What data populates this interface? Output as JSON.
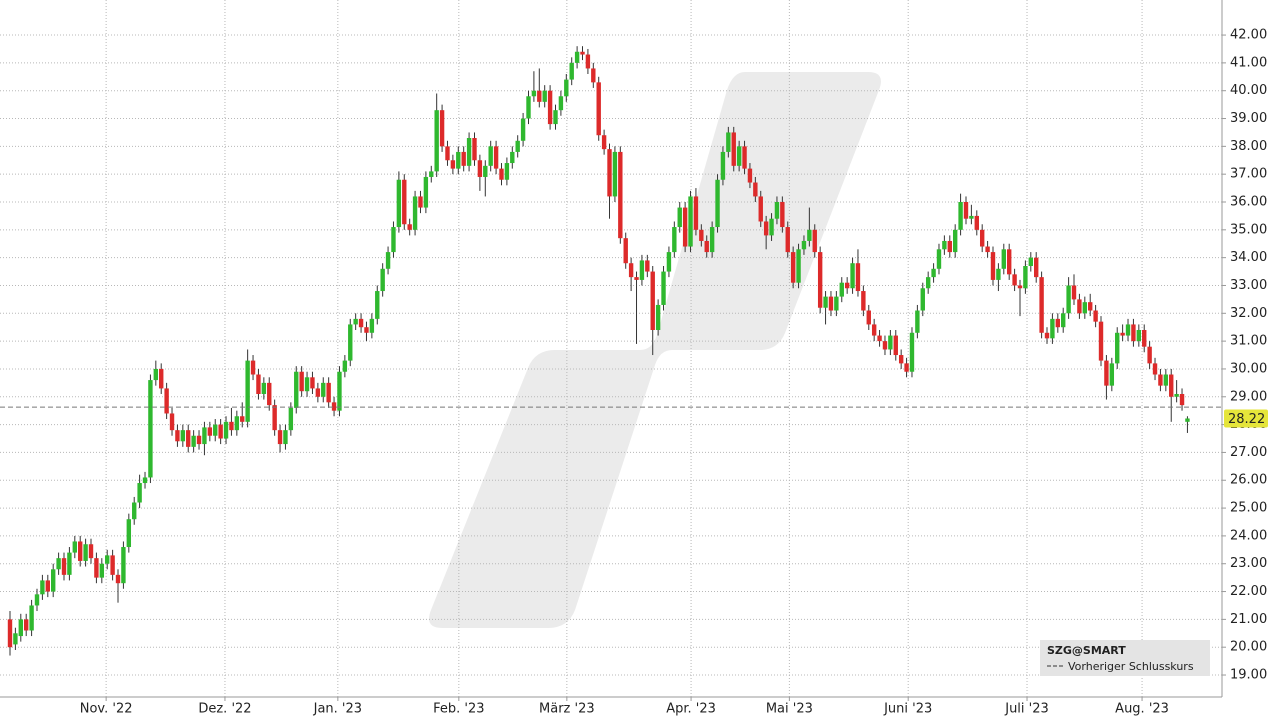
{
  "chart_data": {
    "type": "candlestick",
    "xlim": [
      -1.85,
      224.4
    ],
    "xticks": [
      {
        "value": 17.8,
        "label": "Nov. '22"
      },
      {
        "value": 39.8,
        "label": "Dez. '22"
      },
      {
        "value": 60.7,
        "label": "Jan. '23"
      },
      {
        "value": 83.1,
        "label": "Feb. '23"
      },
      {
        "value": 103.1,
        "label": "März '23"
      },
      {
        "value": 126.1,
        "label": "Apr. '23"
      },
      {
        "value": 144.3,
        "label": "Mai '23"
      },
      {
        "value": 166.3,
        "label": "Juni '23"
      },
      {
        "value": 188.3,
        "label": "Juli '23"
      },
      {
        "value": 209.6,
        "label": "Aug. '23"
      }
    ],
    "ylim": [
      18.21,
      43.26
    ],
    "yticks": [
      {
        "value": 19,
        "label": "19.00"
      },
      {
        "value": 20,
        "label": "20.00"
      },
      {
        "value": 21,
        "label": "21.00"
      },
      {
        "value": 22,
        "label": "22.00"
      },
      {
        "value": 23,
        "label": "23.00"
      },
      {
        "value": 24,
        "label": "24.00"
      },
      {
        "value": 25,
        "label": "25.00"
      },
      {
        "value": 26,
        "label": "26.00"
      },
      {
        "value": 27,
        "label": "27.00"
      },
      {
        "value": 28,
        "label": "28.00"
      },
      {
        "value": 29,
        "label": "29.00"
      },
      {
        "value": 30,
        "label": "30.00"
      },
      {
        "value": 31,
        "label": "31.00"
      },
      {
        "value": 32,
        "label": "32.00"
      },
      {
        "value": 33,
        "label": "33.00"
      },
      {
        "value": 34,
        "label": "34.00"
      },
      {
        "value": 35,
        "label": "35.00"
      },
      {
        "value": 36,
        "label": "36.00"
      },
      {
        "value": 37,
        "label": "37.00"
      },
      {
        "value": 38,
        "label": "38.00"
      },
      {
        "value": 39,
        "label": "39.00"
      },
      {
        "value": 40,
        "label": "40.00"
      },
      {
        "value": 41,
        "label": "41.00"
      },
      {
        "value": 42,
        "label": "42.00"
      }
    ],
    "grid": true,
    "up_color": "#2fb82f",
    "down_color": "#dd2a2a",
    "last_price": 28.22,
    "prev_close": 28.63,
    "legend": {
      "title": "SZG@SMART",
      "prev_close_label": "Vorheriger Schlusskurs"
    },
    "ohlc": [
      [
        21.0,
        21.3,
        19.7,
        20.0
      ],
      [
        20.1,
        20.7,
        19.9,
        20.5
      ],
      [
        20.4,
        21.2,
        20.2,
        21.0
      ],
      [
        21.0,
        21.2,
        20.4,
        20.6
      ],
      [
        20.6,
        21.7,
        20.4,
        21.5
      ],
      [
        21.5,
        22.1,
        21.3,
        21.9
      ],
      [
        21.9,
        22.6,
        21.7,
        22.4
      ],
      [
        22.4,
        22.6,
        21.8,
        22.0
      ],
      [
        22.0,
        23.0,
        21.8,
        22.8
      ],
      [
        22.8,
        23.4,
        22.6,
        23.2
      ],
      [
        23.2,
        23.4,
        22.4,
        22.6
      ],
      [
        22.6,
        23.6,
        22.4,
        23.4
      ],
      [
        23.4,
        24.0,
        23.2,
        23.8
      ],
      [
        23.8,
        24.0,
        22.9,
        23.1
      ],
      [
        23.1,
        23.9,
        22.9,
        23.7
      ],
      [
        23.7,
        23.9,
        23.0,
        23.2
      ],
      [
        23.2,
        23.4,
        22.3,
        22.5
      ],
      [
        22.5,
        23.2,
        22.3,
        23.0
      ],
      [
        23.0,
        23.5,
        22.8,
        23.3
      ],
      [
        23.3,
        23.5,
        22.4,
        22.6
      ],
      [
        22.6,
        22.8,
        21.6,
        22.3
      ],
      [
        22.3,
        23.8,
        22.1,
        23.6
      ],
      [
        23.6,
        24.8,
        23.4,
        24.6
      ],
      [
        24.6,
        25.4,
        24.4,
        25.2
      ],
      [
        25.2,
        26.2,
        25.0,
        25.9
      ],
      [
        25.9,
        26.3,
        25.7,
        26.1
      ],
      [
        26.1,
        29.8,
        25.9,
        29.6
      ],
      [
        29.6,
        30.3,
        29.4,
        30.0
      ],
      [
        30.0,
        30.2,
        29.1,
        29.3
      ],
      [
        29.3,
        29.5,
        28.2,
        28.4
      ],
      [
        28.4,
        28.6,
        27.6,
        27.8
      ],
      [
        27.8,
        28.0,
        27.2,
        27.4
      ],
      [
        27.4,
        28.0,
        27.2,
        27.8
      ],
      [
        27.8,
        28.0,
        27.0,
        27.2
      ],
      [
        27.2,
        27.8,
        27.0,
        27.6
      ],
      [
        27.6,
        27.8,
        27.1,
        27.3
      ],
      [
        27.3,
        28.1,
        26.9,
        27.9
      ],
      [
        27.9,
        28.1,
        27.4,
        27.6
      ],
      [
        27.6,
        28.2,
        27.4,
        28.0
      ],
      [
        28.0,
        28.2,
        27.3,
        27.5
      ],
      [
        27.5,
        28.3,
        27.3,
        28.1
      ],
      [
        28.1,
        28.6,
        27.6,
        27.8
      ],
      [
        27.8,
        28.5,
        27.6,
        28.3
      ],
      [
        28.3,
        28.8,
        27.9,
        28.1
      ],
      [
        28.1,
        30.7,
        27.9,
        30.3
      ],
      [
        30.3,
        30.5,
        29.6,
        29.8
      ],
      [
        29.8,
        30.0,
        28.9,
        29.1
      ],
      [
        29.1,
        29.7,
        28.9,
        29.5
      ],
      [
        29.5,
        29.7,
        28.5,
        28.7
      ],
      [
        28.7,
        28.9,
        27.6,
        27.8
      ],
      [
        27.8,
        28.0,
        27.0,
        27.3
      ],
      [
        27.3,
        28.0,
        27.1,
        27.8
      ],
      [
        27.8,
        28.8,
        27.6,
        28.6
      ],
      [
        28.6,
        30.1,
        28.4,
        29.9
      ],
      [
        29.9,
        30.1,
        29.0,
        29.2
      ],
      [
        29.2,
        29.9,
        29.0,
        29.7
      ],
      [
        29.7,
        29.9,
        29.1,
        29.3
      ],
      [
        29.3,
        29.5,
        28.8,
        29.0
      ],
      [
        29.0,
        29.7,
        28.8,
        29.5
      ],
      [
        29.5,
        29.7,
        28.6,
        28.8
      ],
      [
        28.8,
        29.0,
        28.3,
        28.5
      ],
      [
        28.5,
        30.1,
        28.3,
        29.9
      ],
      [
        29.9,
        30.5,
        29.7,
        30.3
      ],
      [
        30.3,
        31.8,
        30.1,
        31.6
      ],
      [
        31.6,
        32.0,
        31.4,
        31.8
      ],
      [
        31.8,
        32.0,
        31.3,
        31.5
      ],
      [
        31.5,
        31.7,
        31.0,
        31.3
      ],
      [
        31.3,
        32.0,
        31.1,
        31.8
      ],
      [
        31.8,
        33.0,
        31.6,
        32.8
      ],
      [
        32.8,
        33.8,
        32.6,
        33.6
      ],
      [
        33.6,
        34.4,
        33.4,
        34.2
      ],
      [
        34.2,
        35.3,
        34.0,
        35.1
      ],
      [
        35.1,
        37.1,
        34.9,
        36.8
      ],
      [
        36.8,
        37.0,
        35.0,
        35.2
      ],
      [
        35.2,
        35.4,
        34.8,
        35.0
      ],
      [
        35.0,
        36.4,
        34.8,
        36.2
      ],
      [
        36.2,
        36.4,
        35.6,
        35.8
      ],
      [
        35.8,
        37.1,
        35.6,
        36.9
      ],
      [
        36.9,
        37.3,
        36.7,
        37.1
      ],
      [
        37.1,
        39.9,
        36.9,
        39.3
      ],
      [
        39.3,
        39.5,
        37.8,
        38.0
      ],
      [
        38.0,
        38.2,
        37.3,
        37.5
      ],
      [
        37.5,
        37.7,
        37.0,
        37.2
      ],
      [
        37.2,
        38.0,
        37.0,
        37.8
      ],
      [
        37.8,
        38.0,
        37.1,
        37.3
      ],
      [
        37.3,
        38.5,
        37.1,
        38.3
      ],
      [
        38.3,
        38.5,
        37.3,
        37.5
      ],
      [
        37.5,
        37.7,
        36.4,
        36.9
      ],
      [
        36.9,
        37.5,
        36.2,
        37.3
      ],
      [
        37.3,
        38.2,
        37.1,
        38.0
      ],
      [
        38.0,
        38.2,
        37.0,
        37.2
      ],
      [
        37.2,
        37.4,
        36.6,
        36.8
      ],
      [
        36.8,
        37.6,
        36.6,
        37.4
      ],
      [
        37.4,
        38.0,
        37.2,
        37.8
      ],
      [
        37.8,
        38.4,
        37.6,
        38.2
      ],
      [
        38.2,
        39.2,
        38.0,
        39.0
      ],
      [
        39.0,
        40.0,
        38.8,
        39.8
      ],
      [
        39.8,
        40.7,
        39.6,
        40.0
      ],
      [
        40.0,
        40.8,
        39.4,
        39.6
      ],
      [
        39.6,
        40.2,
        39.4,
        40.0
      ],
      [
        40.0,
        40.2,
        38.6,
        38.8
      ],
      [
        38.8,
        39.5,
        38.6,
        39.3
      ],
      [
        39.3,
        40.0,
        39.1,
        39.8
      ],
      [
        39.8,
        40.6,
        39.6,
        40.4
      ],
      [
        40.4,
        41.2,
        40.2,
        41.0
      ],
      [
        41.0,
        41.6,
        40.8,
        41.4
      ],
      [
        41.4,
        41.6,
        41.1,
        41.3
      ],
      [
        41.3,
        41.5,
        40.6,
        40.8
      ],
      [
        40.8,
        41.0,
        40.1,
        40.3
      ],
      [
        40.3,
        40.5,
        38.2,
        38.4
      ],
      [
        38.4,
        38.6,
        37.7,
        37.9
      ],
      [
        37.9,
        38.1,
        35.4,
        36.2
      ],
      [
        36.2,
        38.0,
        36.0,
        37.8
      ],
      [
        37.8,
        38.0,
        34.5,
        34.7
      ],
      [
        34.7,
        34.9,
        33.6,
        33.8
      ],
      [
        33.8,
        34.0,
        32.8,
        33.3
      ],
      [
        33.3,
        33.5,
        30.9,
        33.2
      ],
      [
        33.2,
        34.1,
        33.0,
        33.9
      ],
      [
        33.9,
        34.1,
        33.3,
        33.5
      ],
      [
        33.5,
        33.7,
        30.5,
        31.4
      ],
      [
        31.4,
        32.5,
        31.2,
        32.3
      ],
      [
        32.3,
        33.7,
        32.1,
        33.5
      ],
      [
        33.5,
        34.4,
        33.3,
        34.2
      ],
      [
        34.2,
        35.3,
        34.0,
        35.1
      ],
      [
        35.1,
        36.0,
        34.9,
        35.8
      ],
      [
        35.8,
        36.0,
        34.2,
        34.4
      ],
      [
        34.4,
        36.4,
        34.2,
        36.2
      ],
      [
        36.2,
        36.5,
        34.8,
        35.0
      ],
      [
        35.0,
        35.2,
        34.4,
        34.6
      ],
      [
        34.6,
        34.8,
        34.0,
        34.2
      ],
      [
        34.2,
        35.3,
        34.0,
        35.1
      ],
      [
        35.1,
        37.0,
        34.9,
        36.8
      ],
      [
        36.8,
        38.0,
        36.6,
        37.8
      ],
      [
        37.8,
        38.7,
        37.6,
        38.5
      ],
      [
        38.5,
        38.7,
        37.1,
        37.3
      ],
      [
        37.3,
        38.2,
        37.1,
        38.0
      ],
      [
        38.0,
        38.2,
        37.0,
        37.2
      ],
      [
        37.2,
        37.4,
        36.5,
        36.7
      ],
      [
        36.7,
        36.9,
        36.0,
        36.2
      ],
      [
        36.2,
        36.4,
        35.1,
        35.3
      ],
      [
        35.3,
        35.5,
        34.3,
        34.8
      ],
      [
        34.8,
        35.6,
        34.6,
        35.4
      ],
      [
        35.4,
        36.2,
        35.2,
        36.0
      ],
      [
        36.0,
        36.2,
        34.9,
        35.1
      ],
      [
        35.1,
        35.3,
        34.0,
        34.2
      ],
      [
        34.2,
        34.4,
        32.9,
        33.1
      ],
      [
        33.1,
        34.5,
        32.9,
        34.3
      ],
      [
        34.3,
        34.8,
        34.1,
        34.6
      ],
      [
        34.6,
        35.8,
        34.4,
        35.0
      ],
      [
        35.0,
        35.2,
        34.0,
        34.2
      ],
      [
        34.2,
        34.4,
        32.0,
        32.2
      ],
      [
        32.2,
        32.8,
        31.6,
        32.6
      ],
      [
        32.6,
        32.8,
        31.9,
        32.1
      ],
      [
        32.1,
        32.8,
        31.9,
        32.6
      ],
      [
        32.6,
        33.3,
        32.4,
        33.1
      ],
      [
        33.1,
        33.3,
        32.7,
        32.9
      ],
      [
        32.9,
        34.0,
        32.7,
        33.8
      ],
      [
        33.8,
        34.3,
        32.6,
        32.8
      ],
      [
        32.8,
        33.0,
        31.9,
        32.1
      ],
      [
        32.1,
        32.3,
        31.4,
        31.6
      ],
      [
        31.6,
        31.8,
        31.0,
        31.2
      ],
      [
        31.2,
        31.4,
        30.8,
        31.0
      ],
      [
        31.0,
        31.2,
        30.5,
        30.7
      ],
      [
        30.7,
        31.4,
        30.5,
        31.2
      ],
      [
        31.2,
        31.4,
        30.3,
        30.5
      ],
      [
        30.5,
        30.7,
        30.0,
        30.2
      ],
      [
        30.2,
        30.4,
        29.7,
        29.9
      ],
      [
        29.9,
        31.5,
        29.7,
        31.3
      ],
      [
        31.3,
        32.3,
        31.1,
        32.1
      ],
      [
        32.1,
        33.1,
        31.9,
        32.9
      ],
      [
        32.9,
        33.5,
        32.7,
        33.3
      ],
      [
        33.3,
        33.8,
        33.1,
        33.6
      ],
      [
        33.6,
        34.5,
        33.4,
        34.3
      ],
      [
        34.3,
        34.8,
        34.1,
        34.6
      ],
      [
        34.6,
        34.8,
        34.0,
        34.2
      ],
      [
        34.2,
        35.2,
        34.0,
        35.0
      ],
      [
        35.0,
        36.3,
        34.8,
        36.0
      ],
      [
        36.0,
        36.2,
        35.2,
        35.4
      ],
      [
        35.4,
        35.9,
        35.2,
        35.5
      ],
      [
        35.5,
        35.7,
        34.8,
        35.0
      ],
      [
        35.0,
        35.2,
        34.2,
        34.4
      ],
      [
        34.4,
        34.6,
        34.0,
        34.2
      ],
      [
        34.2,
        34.4,
        33.0,
        33.2
      ],
      [
        33.2,
        33.8,
        32.8,
        33.6
      ],
      [
        33.6,
        34.5,
        33.4,
        34.3
      ],
      [
        34.3,
        34.5,
        33.2,
        33.4
      ],
      [
        33.4,
        33.6,
        32.8,
        33.0
      ],
      [
        33.0,
        33.2,
        31.9,
        32.9
      ],
      [
        32.9,
        33.9,
        32.7,
        33.7
      ],
      [
        33.7,
        34.2,
        33.5,
        34.0
      ],
      [
        34.0,
        34.2,
        33.1,
        33.3
      ],
      [
        33.3,
        33.5,
        31.1,
        31.3
      ],
      [
        31.3,
        31.5,
        30.9,
        31.1
      ],
      [
        31.1,
        32.0,
        30.9,
        31.8
      ],
      [
        31.8,
        32.0,
        31.3,
        31.5
      ],
      [
        31.5,
        32.2,
        31.3,
        32.0
      ],
      [
        32.0,
        33.3,
        31.8,
        33.0
      ],
      [
        33.0,
        33.4,
        32.3,
        32.5
      ],
      [
        32.5,
        32.7,
        31.8,
        32.0
      ],
      [
        32.0,
        32.6,
        31.8,
        32.4
      ],
      [
        32.4,
        32.7,
        31.9,
        32.1
      ],
      [
        32.1,
        32.3,
        31.5,
        31.7
      ],
      [
        31.7,
        31.9,
        30.1,
        30.3
      ],
      [
        30.3,
        30.5,
        28.9,
        29.4
      ],
      [
        29.4,
        30.4,
        29.2,
        30.2
      ],
      [
        30.2,
        31.5,
        30.0,
        31.3
      ],
      [
        31.3,
        31.6,
        31.0,
        31.2
      ],
      [
        31.2,
        31.8,
        31.0,
        31.6
      ],
      [
        31.6,
        31.8,
        30.8,
        31.0
      ],
      [
        31.0,
        31.6,
        30.8,
        31.4
      ],
      [
        31.4,
        31.6,
        30.6,
        30.8
      ],
      [
        30.8,
        31.0,
        30.0,
        30.2
      ],
      [
        30.2,
        30.4,
        29.6,
        29.8
      ],
      [
        29.8,
        30.0,
        29.2,
        29.4
      ],
      [
        29.4,
        30.0,
        29.2,
        29.8
      ],
      [
        29.8,
        30.0,
        28.1,
        29.0
      ],
      [
        29.0,
        29.6,
        28.8,
        29.1
      ],
      [
        29.1,
        29.3,
        28.5,
        28.7
      ],
      [
        28.1,
        28.3,
        27.7,
        28.22
      ]
    ]
  }
}
